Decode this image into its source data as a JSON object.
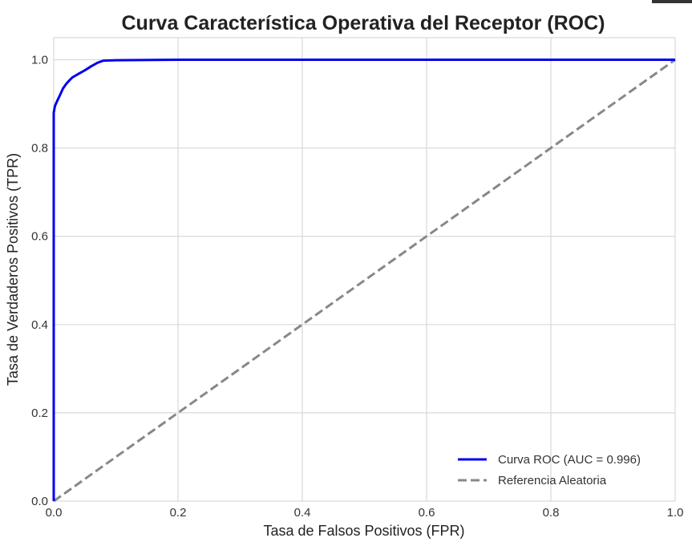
{
  "chart_data": {
    "type": "line",
    "title": "Curva Característica Operativa del Receptor (ROC)",
    "xlabel": "Tasa de Falsos Positivos (FPR)",
    "ylabel": "Tasa de Verdaderos Positivos (TPR)",
    "xlim": [
      0,
      1
    ],
    "ylim": [
      0,
      1.05
    ],
    "xticks": [
      "0.0",
      "0.2",
      "0.4",
      "0.6",
      "0.8",
      "1.0"
    ],
    "yticks": [
      "0.0",
      "0.2",
      "0.4",
      "0.6",
      "0.8",
      "1.0"
    ],
    "grid": true,
    "legend_position": "bottom-right",
    "series": [
      {
        "name": "Curva ROC (AUC = 0.996)",
        "color": "#0000ee",
        "style": "solid",
        "x": [
          0,
          0,
          0.002,
          0.005,
          0.01,
          0.015,
          0.02,
          0.025,
          0.03,
          0.04,
          0.05,
          0.06,
          0.07,
          0.08,
          0.1,
          0.2,
          0.4,
          0.6,
          0.8,
          1.0
        ],
        "y": [
          0,
          0.88,
          0.895,
          0.905,
          0.92,
          0.935,
          0.945,
          0.953,
          0.96,
          0.968,
          0.976,
          0.985,
          0.993,
          0.998,
          0.999,
          1.0,
          1.0,
          1.0,
          1.0,
          1.0
        ]
      },
      {
        "name": "Referencia Aleatoria",
        "color": "#888888",
        "style": "dashed",
        "x": [
          0,
          1
        ],
        "y": [
          0,
          1
        ]
      }
    ]
  }
}
